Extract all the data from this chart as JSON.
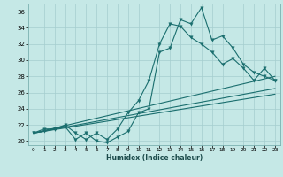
{
  "xlabel": "Humidex (Indice chaleur)",
  "bg_color": "#c5e8e6",
  "grid_color": "#a5cece",
  "line_color": "#1a6e6e",
  "xlim": [
    -0.5,
    23.5
  ],
  "ylim": [
    19.5,
    37.0
  ],
  "xticks": [
    0,
    1,
    2,
    3,
    4,
    5,
    6,
    7,
    8,
    9,
    10,
    11,
    12,
    13,
    14,
    15,
    16,
    17,
    18,
    19,
    20,
    21,
    22,
    23
  ],
  "yticks": [
    20,
    22,
    24,
    26,
    28,
    30,
    32,
    34,
    36
  ],
  "curve1_x": [
    0,
    1,
    2,
    3,
    4,
    5,
    6,
    7,
    8,
    9,
    10,
    11,
    12,
    13,
    14,
    15,
    16,
    17,
    18,
    19,
    20,
    21,
    22,
    23
  ],
  "curve1_y": [
    21.0,
    21.2,
    21.5,
    21.8,
    20.2,
    21.0,
    20.0,
    19.8,
    20.5,
    21.2,
    23.5,
    24.0,
    31.0,
    31.5,
    35.0,
    34.5,
    36.5,
    32.5,
    33.0,
    31.5,
    29.5,
    28.5,
    28.0,
    27.5
  ],
  "curve2_x": [
    0,
    1,
    2,
    3,
    4,
    5,
    6,
    7,
    8,
    9,
    10,
    11,
    12,
    13,
    14,
    15,
    16,
    17,
    18,
    19,
    20,
    21,
    22,
    23
  ],
  "curve2_y": [
    21.0,
    21.5,
    21.5,
    22.0,
    21.0,
    20.2,
    21.0,
    20.2,
    21.5,
    23.5,
    25.0,
    27.5,
    32.0,
    34.5,
    34.2,
    32.8,
    32.0,
    31.0,
    29.5,
    30.2,
    29.0,
    27.5,
    29.0,
    27.5
  ],
  "trend1_x": [
    0,
    23
  ],
  "trend1_y": [
    21.0,
    28.0
  ],
  "trend2_x": [
    0,
    23
  ],
  "trend2_y": [
    21.0,
    26.5
  ],
  "trend3_x": [
    0,
    23
  ],
  "trend3_y": [
    21.0,
    25.8
  ]
}
